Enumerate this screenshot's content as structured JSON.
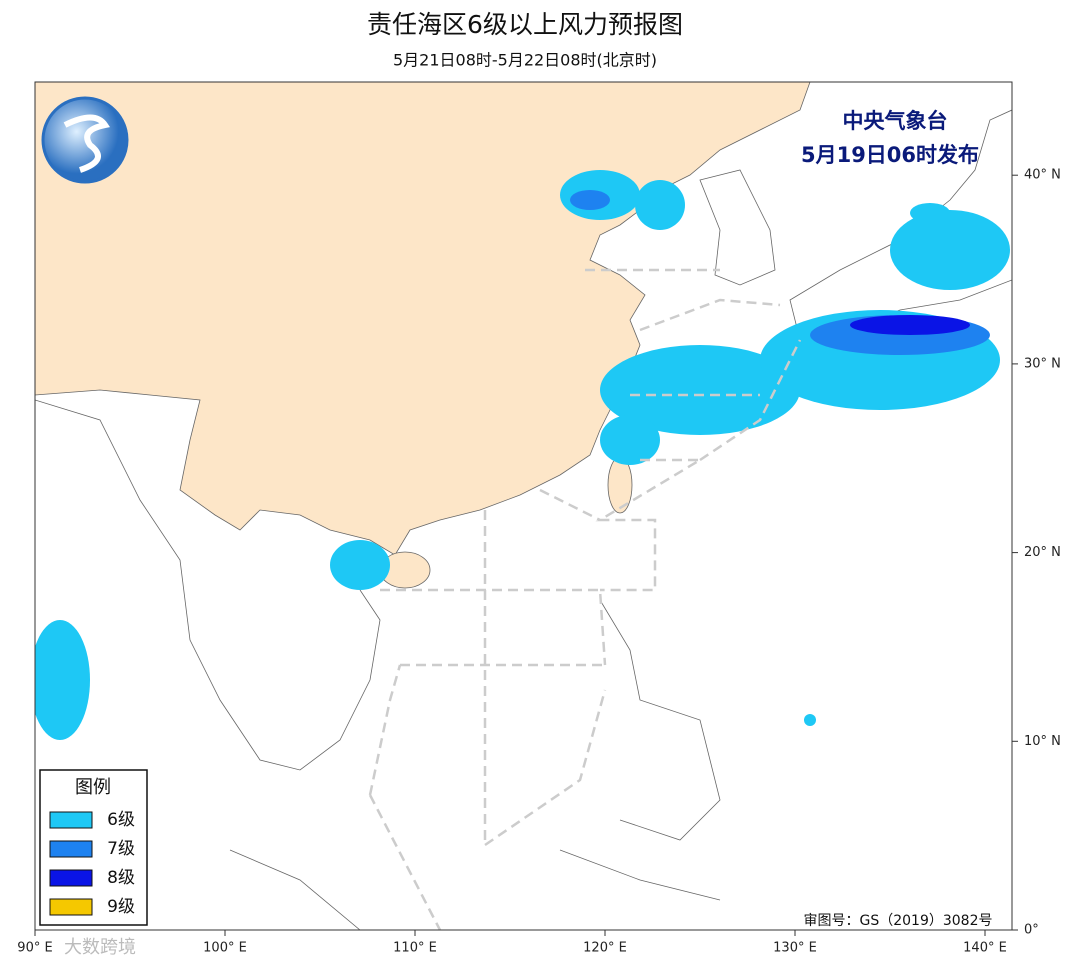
{
  "header": {
    "title": "责任海区6级以上风力预报图",
    "subtitle": "5月21日08时-5月22日08时(北京时)"
  },
  "issuer": {
    "line1": "中央气象台",
    "line2": "5月19日06时发布"
  },
  "legend": {
    "title": "图例",
    "items": [
      {
        "label": "6级",
        "color": "#1ec8f5"
      },
      {
        "label": "7级",
        "color": "#1e82f0"
      },
      {
        "label": "8级",
        "color": "#0a14e6"
      },
      {
        "label": "9级",
        "color": "#f5c800"
      }
    ]
  },
  "map": {
    "lon_ticks": [
      {
        "value": 90,
        "label": "90° E"
      },
      {
        "value": 100,
        "label": "100° E"
      },
      {
        "value": 110,
        "label": "110° E"
      },
      {
        "value": 120,
        "label": "120° E"
      },
      {
        "value": 130,
        "label": "130° E"
      },
      {
        "value": 140,
        "label": "140° E"
      }
    ],
    "lat_ticks": [
      {
        "value": 0,
        "label": "0°"
      },
      {
        "value": 10,
        "label": "10° N"
      },
      {
        "value": 20,
        "label": "20° N"
      },
      {
        "value": 30,
        "label": "30° N"
      },
      {
        "value": 40,
        "label": "40° N"
      }
    ]
  },
  "review_number": "审图号：GS（2019）3082号",
  "watermark": "大数跨境"
}
